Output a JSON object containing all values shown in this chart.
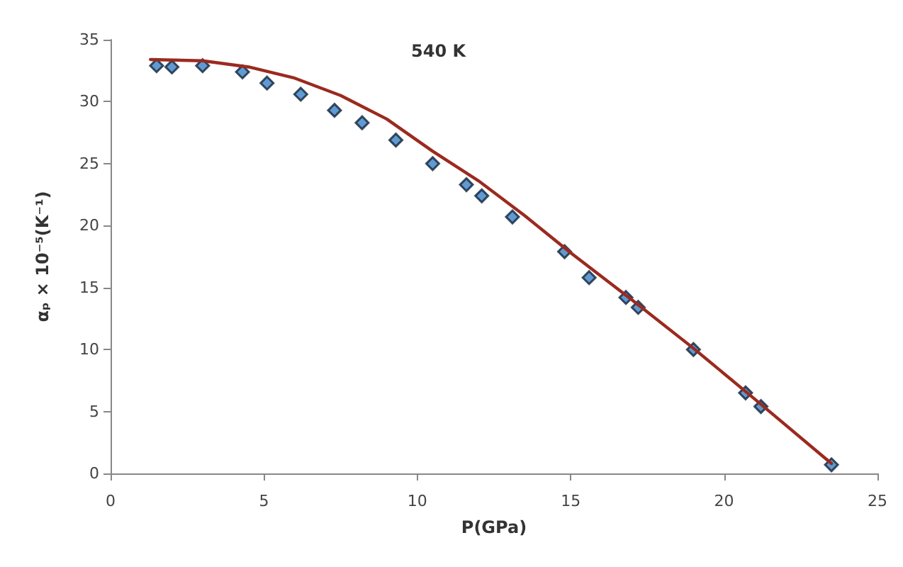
{
  "chart_data": {
    "type": "scatter",
    "xlabel": "P(GPa)",
    "ylabel": "αₚ × 10⁻⁵(K⁻¹)",
    "annotations": [
      "540 K"
    ],
    "xlim": [
      0,
      25
    ],
    "xticks": [
      0,
      5,
      10,
      15,
      20,
      25
    ],
    "ylim": [
      0,
      35
    ],
    "yticks": [
      0,
      5,
      10,
      15,
      20,
      25,
      30,
      35
    ],
    "grid": false,
    "series": [
      {
        "marker": "diamond",
        "color": "#3a7fc4",
        "x": [
          1.5,
          2,
          3,
          4.3,
          5.1,
          6.2,
          7.3,
          8.2,
          9.3,
          10.5,
          11.6,
          12.1,
          13.1,
          14.8,
          15.6,
          16.8,
          17.2,
          19,
          20.7,
          21.2,
          23.5
        ],
        "values": [
          32.9,
          32.8,
          32.9,
          32.4,
          31.5,
          30.6,
          29.3,
          28.3,
          26.9,
          25,
          23.3,
          22.4,
          20.7,
          17.9,
          15.8,
          14.2,
          13.4,
          10,
          6.5,
          5.4,
          0.7
        ]
      },
      {
        "type": "line",
        "marker": "none",
        "line_style": "solid",
        "color": "#9b2a1f",
        "x": [
          1.3,
          3,
          4.5,
          6,
          7.5,
          9,
          10.5,
          12,
          13.5,
          15,
          17,
          19,
          21,
          23.5
        ],
        "values": [
          33.4,
          33.3,
          32.8,
          31.9,
          30.5,
          28.6,
          26,
          23.6,
          20.8,
          17.8,
          14,
          10.1,
          6,
          0.8
        ]
      }
    ]
  }
}
